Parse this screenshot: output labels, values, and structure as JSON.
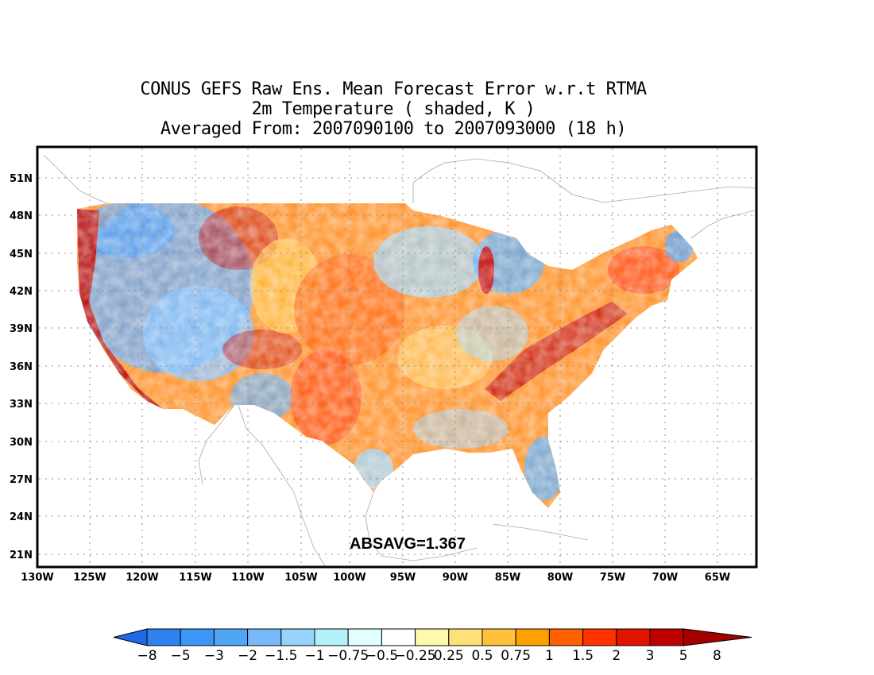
{
  "title": {
    "line1": "CONUS GEFS Raw Ens. Mean Forecast Error w.r.t RTMA",
    "line2": "2m Temperature ( shaded, K )",
    "line3": "Averaged From: 2007090100 to 2007093000 (18 h)"
  },
  "map": {
    "lat_ticks": [
      "51N",
      "48N",
      "45N",
      "42N",
      "39N",
      "36N",
      "33N",
      "30N",
      "27N",
      "24N",
      "21N"
    ],
    "lon_ticks": [
      "130W",
      "125W",
      "120W",
      "115W",
      "110W",
      "105W",
      "100W",
      "95W",
      "90W",
      "85W",
      "80W",
      "75W",
      "70W",
      "65W"
    ],
    "lat_range": [
      20,
      52
    ],
    "lon_range": [
      -130,
      -62
    ],
    "grid": "dotted"
  },
  "stat": {
    "label": "ABSAVG=1.367"
  },
  "colorbar": {
    "colors": [
      "#1e6ae6",
      "#2d82f0",
      "#3c96f5",
      "#50a5f5",
      "#78b9fa",
      "#96d2fa",
      "#b4f0fa",
      "#e1ffff",
      "#ffffff",
      "#fffaaa",
      "#ffe178",
      "#ffc03c",
      "#ffa000",
      "#ff6000",
      "#ff3200",
      "#e11400",
      "#c00000",
      "#a50000"
    ],
    "labels": [
      "−8",
      "−5",
      "−3",
      "−2",
      "−1.5",
      "−1",
      "−0.75",
      "−0.5",
      "−0.25",
      "0.25",
      "0.5",
      "0.75",
      "1",
      "1.5",
      "2",
      "3",
      "5",
      "8"
    ]
  }
}
